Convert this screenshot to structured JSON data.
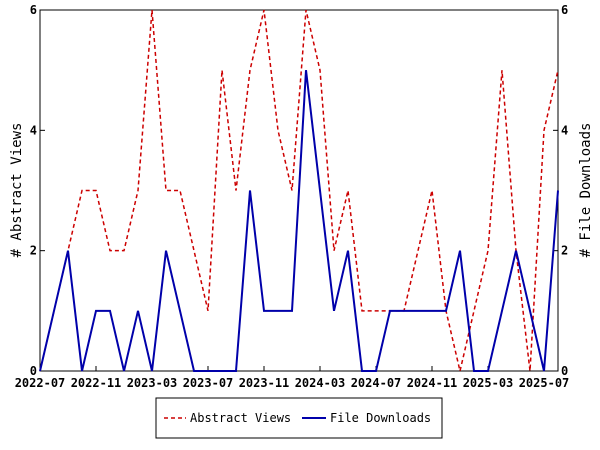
{
  "chart_data": {
    "type": "line",
    "x_tick_labels": [
      "2022-07",
      "2022-11",
      "2023-03",
      "2023-07",
      "2023-11",
      "2024-03",
      "2024-07",
      "2024-11",
      "2025-03",
      "2025-07"
    ],
    "x": [
      "2022-07",
      "2022-08",
      "2022-09",
      "2022-10",
      "2022-11",
      "2022-12",
      "2023-01",
      "2023-02",
      "2023-03",
      "2023-04",
      "2023-05",
      "2023-06",
      "2023-07",
      "2023-08",
      "2023-09",
      "2023-10",
      "2023-11",
      "2023-12",
      "2024-01",
      "2024-02",
      "2024-03",
      "2024-04",
      "2024-05",
      "2024-06",
      "2024-07",
      "2024-08",
      "2024-09",
      "2024-10",
      "2024-11",
      "2024-12",
      "2025-01",
      "2025-02",
      "2025-03",
      "2025-04",
      "2025-05",
      "2025-06",
      "2025-07",
      "2025-08"
    ],
    "series": [
      {
        "name": "Abstract Views",
        "axis": "left",
        "color": "#cc0000",
        "dash": "dashed",
        "values": [
          0,
          1,
          2,
          3,
          3,
          2,
          2,
          3,
          6,
          3,
          3,
          2,
          1,
          5,
          3,
          5,
          6,
          4,
          3,
          6,
          5,
          2,
          3,
          1,
          1,
          1,
          1,
          2,
          3,
          1,
          0,
          1,
          2,
          5,
          2,
          0,
          4,
          5
        ]
      },
      {
        "name": "File Downloads",
        "axis": "right",
        "color": "#0000aa",
        "dash": "solid",
        "values": [
          0,
          1,
          2,
          0,
          1,
          1,
          0,
          1,
          0,
          2,
          1,
          0,
          0,
          0,
          0,
          3,
          1,
          1,
          1,
          5,
          3,
          1,
          2,
          0,
          0,
          1,
          1,
          1,
          1,
          1,
          2,
          0,
          0,
          1,
          2,
          1,
          0,
          3
        ]
      }
    ],
    "ylabel_left": "# Abstract Views",
    "ylabel_right": "# File Downloads",
    "ylim_left": [
      0,
      6
    ],
    "ylim_right": [
      0,
      6
    ],
    "y_ticks_left": [
      "0",
      "2",
      "4",
      "6"
    ],
    "y_ticks_right": [
      "0",
      "2",
      "4",
      "6"
    ],
    "grid": false,
    "legend_position": "bottom-center",
    "title": "",
    "xlabel": ""
  }
}
